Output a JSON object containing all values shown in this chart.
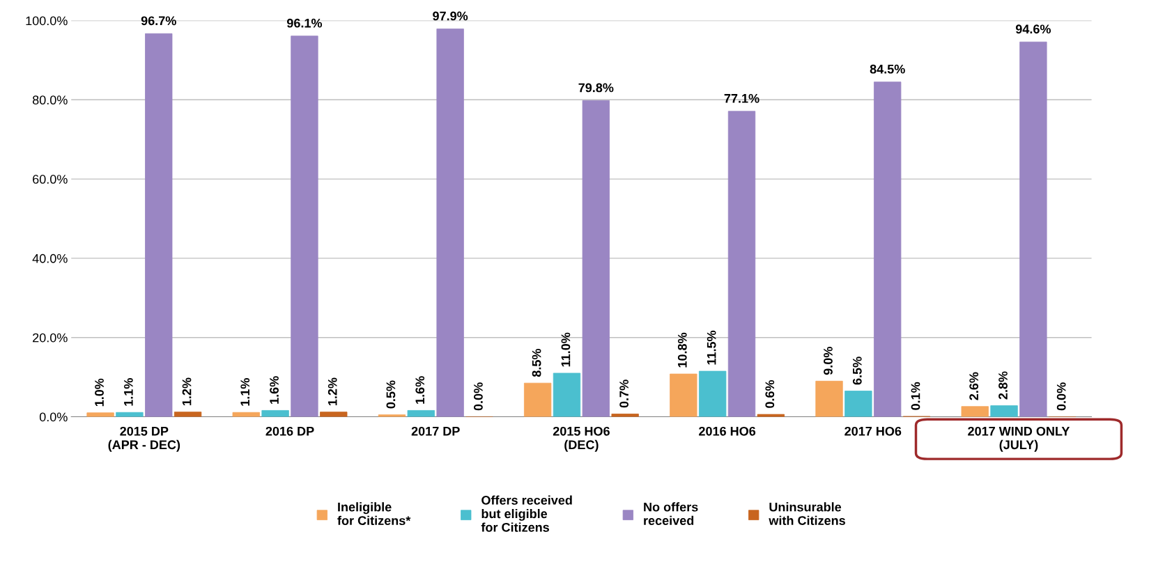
{
  "chart_data": {
    "type": "bar",
    "categories": [
      "2015 DP\n(APR - DEC)",
      "2016 DP",
      "2017 DP",
      "2015 HO6\n(DEC)",
      "2016 HO6",
      "2017 HO6",
      "2017 WIND ONLY\n(JULY)"
    ],
    "series": [
      {
        "name": "Ineligible\nfor Citizens*",
        "color": "#f5a65b",
        "values": [
          1.0,
          1.1,
          0.5,
          8.5,
          10.8,
          9.0,
          2.6
        ],
        "value_labels": [
          "1.0%",
          "1.1%",
          "0.5%",
          "8.5%",
          "10.8%",
          "9.0%",
          "2.6%"
        ]
      },
      {
        "name": "Offers received\nbut eligible\nfor Citizens",
        "color": "#4bbfcf",
        "values": [
          1.1,
          1.6,
          1.6,
          11.0,
          11.5,
          6.5,
          2.8
        ],
        "value_labels": [
          "1.1%",
          "1.6%",
          "1.6%",
          "11.0%",
          "11.5%",
          "6.5%",
          "2.8%"
        ]
      },
      {
        "name": "No offers\nreceived",
        "color": "#9a86c3",
        "values": [
          96.7,
          96.1,
          97.9,
          79.8,
          77.1,
          84.5,
          94.6
        ],
        "value_labels": [
          "96.7%",
          "96.1%",
          "97.9%",
          "79.8%",
          "77.1%",
          "84.5%",
          "94.6%"
        ]
      },
      {
        "name": "Uninsurable\nwith Citizens",
        "color": "#c8651f",
        "values": [
          1.2,
          1.2,
          0.0,
          0.7,
          0.6,
          0.1,
          0.0
        ],
        "value_labels": [
          "1.2%",
          "1.2%",
          "0.0%",
          "0.7%",
          "0.6%",
          "0.1%",
          "0.0%"
        ]
      }
    ],
    "ylim": [
      0,
      100
    ],
    "yticks": [
      {
        "value": 0,
        "label": "0.0%"
      },
      {
        "value": 20,
        "label": "20.0%"
      },
      {
        "value": 40,
        "label": "40.0%"
      },
      {
        "value": 60,
        "label": "60.0%"
      },
      {
        "value": 80,
        "label": "80.0%"
      },
      {
        "value": 100,
        "label": "100.0%"
      }
    ],
    "grid": "y",
    "legend": "bottom"
  }
}
